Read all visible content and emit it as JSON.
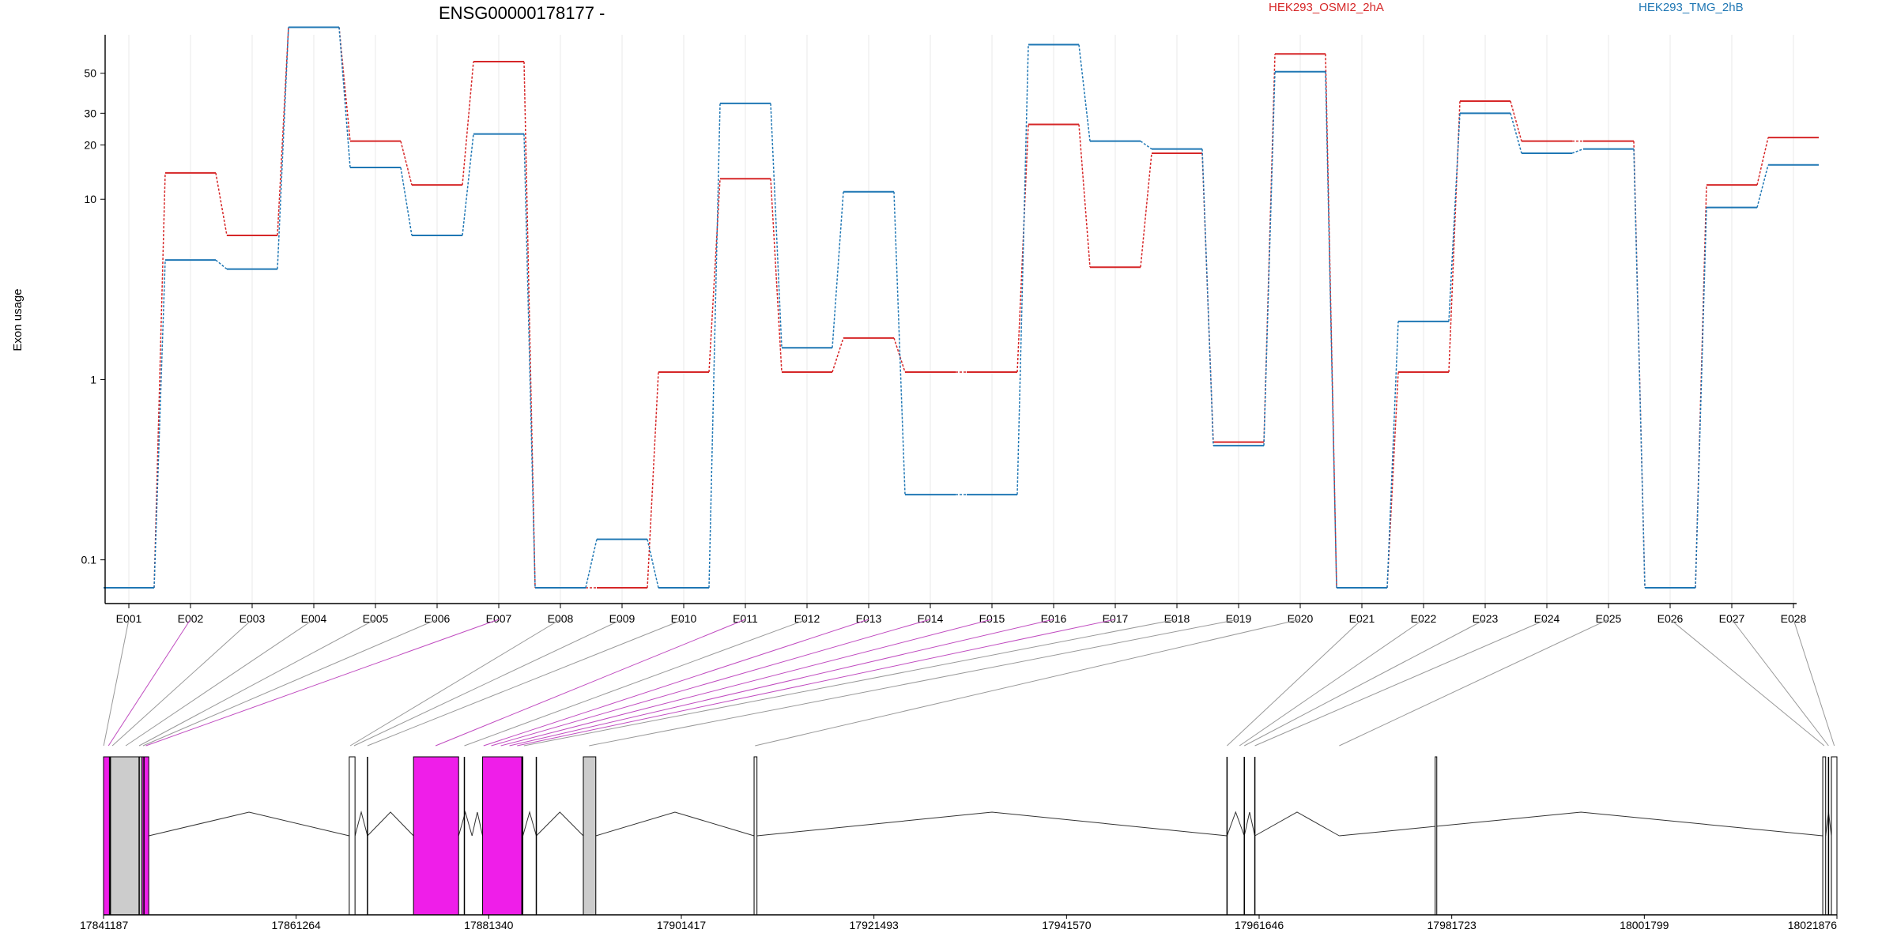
{
  "chart_data": {
    "type": "line",
    "title": "ENSG00000178177 -",
    "ylabel": "Exon usage",
    "y_scale": "log",
    "ylim": [
      0.07,
      100
    ],
    "y_ticks": [
      0.1,
      1,
      10,
      20,
      30,
      50
    ],
    "grid": "vertical-only",
    "legend_placement": "top-right",
    "categories": [
      "E001",
      "E002",
      "E003",
      "E004",
      "E005",
      "E006",
      "E007",
      "E008",
      "E009",
      "E010",
      "E011",
      "E012",
      "E013",
      "E014",
      "E015",
      "E016",
      "E017",
      "E018",
      "E019",
      "E020",
      "E021",
      "E022",
      "E023",
      "E024",
      "E025",
      "E026",
      "E027",
      "E028"
    ],
    "series": [
      {
        "name": "HEK293_OSMI2_2hA",
        "color": "#d62728",
        "values": [
          0.07,
          14,
          6.3,
          90,
          21,
          12,
          58,
          0.07,
          0.07,
          1.1,
          13,
          1.1,
          1.7,
          1.1,
          1.1,
          26,
          4.2,
          18,
          0.45,
          64,
          0.07,
          1.1,
          35,
          21,
          21,
          0.07,
          12,
          22
        ]
      },
      {
        "name": "HEK293_TMG_2hB",
        "color": "#1f77b4",
        "values": [
          0.07,
          4.6,
          4.1,
          90,
          15,
          6.3,
          23,
          0.07,
          0.13,
          0.07,
          34,
          1.5,
          11,
          0.23,
          0.23,
          72,
          21,
          19,
          0.43,
          51,
          0.07,
          2.1,
          30,
          18,
          19,
          0.07,
          9,
          15.5
        ]
      }
    ],
    "gene_model": {
      "genomic_ticks": [
        "17841187",
        "17861264",
        "17881340",
        "17901417",
        "17921493",
        "17941570",
        "17961646",
        "17981723",
        "18001799",
        "18021876"
      ],
      "genomic_range": [
        17841187,
        18021876
      ],
      "exon_colors": {
        "significant": "#ef1ee9",
        "normal": "#cccccc",
        "outline": "#000000"
      },
      "exon_blocks": [
        {
          "start": 17841187,
          "end": 17841800,
          "fill": "#ef1ee9"
        },
        {
          "start": 17841800,
          "end": 17845200,
          "fill": "#cccccc"
        },
        {
          "start": 17845200,
          "end": 17845900,
          "fill": "#ef1ee9"
        },
        {
          "start": 17866800,
          "end": 17867400,
          "fill": "#ffffff"
        },
        {
          "start": 17873500,
          "end": 17878200,
          "fill": "#ef1ee9"
        },
        {
          "start": 17880700,
          "end": 17884900,
          "fill": "#ef1ee9"
        },
        {
          "start": 17891200,
          "end": 17892500,
          "fill": "#cccccc"
        },
        {
          "start": 17909000,
          "end": 17909300,
          "fill": "#ffffff"
        },
        {
          "start": 17980000,
          "end": 17980150,
          "fill": "#ffffff"
        },
        {
          "start": 18020400,
          "end": 18020700,
          "fill": "#ffffff"
        },
        {
          "start": 18021300,
          "end": 18021876,
          "fill": "#ffffff"
        }
      ],
      "exon_lines": [
        17841900,
        17844900,
        17845400,
        17868700,
        17878800,
        17884800,
        17886300,
        17958300,
        17960100,
        17961200,
        18021000
      ],
      "introns": [
        [
          17845900,
          17866800
        ],
        [
          17867400,
          17868700
        ],
        [
          17868700,
          17873500
        ],
        [
          17878200,
          17879600
        ],
        [
          17879600,
          17880700
        ],
        [
          17884900,
          17886300
        ],
        [
          17886300,
          17891200
        ],
        [
          17892500,
          17909000
        ],
        [
          17909300,
          17958300
        ],
        [
          17958300,
          17960100
        ],
        [
          17960100,
          17961200
        ],
        [
          17961200,
          17970000
        ],
        [
          17970000,
          18020400
        ],
        [
          18020700,
          18021300
        ]
      ],
      "exon_links": [
        {
          "exon": "E001",
          "pos": 17841200,
          "color": "#999999"
        },
        {
          "exon": "E002",
          "pos": 17841700,
          "color": "#c04cc0"
        },
        {
          "exon": "E003",
          "pos": 17842100,
          "color": "#999999"
        },
        {
          "exon": "E004",
          "pos": 17843500,
          "color": "#999999"
        },
        {
          "exon": "E005",
          "pos": 17844900,
          "color": "#999999"
        },
        {
          "exon": "E006",
          "pos": 17845300,
          "color": "#999999"
        },
        {
          "exon": "E007",
          "pos": 17845600,
          "color": "#c04cc0"
        },
        {
          "exon": "E008",
          "pos": 17866900,
          "color": "#999999"
        },
        {
          "exon": "E009",
          "pos": 17867300,
          "color": "#999999"
        },
        {
          "exon": "E010",
          "pos": 17868700,
          "color": "#999999"
        },
        {
          "exon": "E011",
          "pos": 17875800,
          "color": "#c04cc0"
        },
        {
          "exon": "E012",
          "pos": 17878800,
          "color": "#999999"
        },
        {
          "exon": "E013",
          "pos": 17880800,
          "color": "#c04cc0"
        },
        {
          "exon": "E014",
          "pos": 17881600,
          "color": "#c04cc0"
        },
        {
          "exon": "E015",
          "pos": 17882600,
          "color": "#c04cc0"
        },
        {
          "exon": "E016",
          "pos": 17883500,
          "color": "#c04cc0"
        },
        {
          "exon": "E017",
          "pos": 17884300,
          "color": "#c04cc0"
        },
        {
          "exon": "E018",
          "pos": 17885000,
          "color": "#999999"
        },
        {
          "exon": "E019",
          "pos": 17891800,
          "color": "#999999"
        },
        {
          "exon": "E020",
          "pos": 17909100,
          "color": "#999999"
        },
        {
          "exon": "E021",
          "pos": 17958300,
          "color": "#999999"
        },
        {
          "exon": "E022",
          "pos": 17959600,
          "color": "#999999"
        },
        {
          "exon": "E023",
          "pos": 17960100,
          "color": "#999999"
        },
        {
          "exon": "E024",
          "pos": 17961200,
          "color": "#999999"
        },
        {
          "exon": "E025",
          "pos": 17970000,
          "color": "#999999"
        },
        {
          "exon": "E026",
          "pos": 18020550,
          "color": "#999999"
        },
        {
          "exon": "E027",
          "pos": 18021000,
          "color": "#999999"
        },
        {
          "exon": "E028",
          "pos": 18021600,
          "color": "#999999"
        }
      ]
    }
  }
}
